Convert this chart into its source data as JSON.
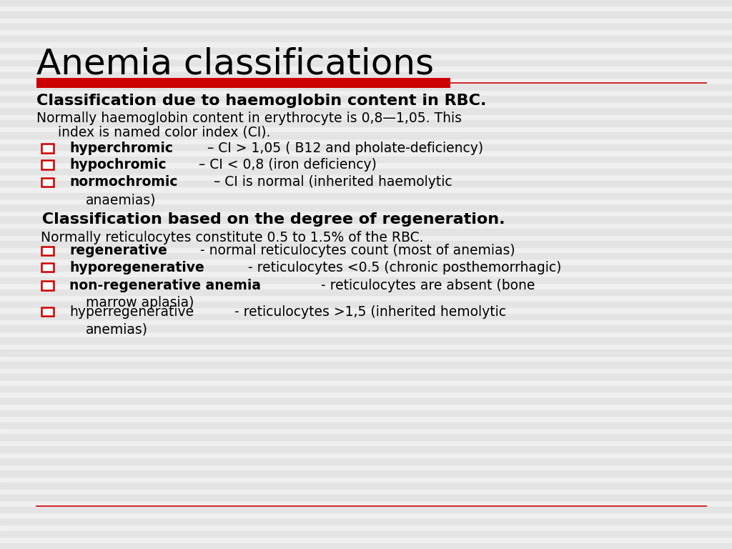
{
  "title": "Anemia classifications",
  "title_fontsize": 36,
  "title_color": "#000000",
  "background_color": "#f0f0f0",
  "stripe_color": "#e4e4e4",
  "red_bar_color": "#cc0000",
  "red_line_color": "#cc0000",
  "section1_heading": "Classification due to haemoglobin content in RBC.",
  "section1_intro_line1": "Normally haemoglobin content in erythrocyte is 0,8—1,05. This",
  "section1_intro_line2": "     index is named color index (CI).",
  "section1_bullets": [
    {
      "bold": "hyperchromic",
      "rest": " – CI > 1,05 ( B12 and pholate-deficiency)",
      "wrap": null
    },
    {
      "bold": "hypochromic",
      "rest": " – CI < 0,8 (iron deficiency)",
      "wrap": null
    },
    {
      "bold": "normochromic",
      "rest": " – CI is normal (inherited haemolytic",
      "wrap": "anaemias)"
    }
  ],
  "section2_heading": " Classification based on the degree of regeneration.",
  "section2_intro": " Normally reticulocytes constitute 0.5 to 1.5% of the RBC.",
  "section2_bullets": [
    {
      "bold": "regenerative",
      "rest": " - normal reticulocytes count (most of anemias)",
      "wrap": null,
      "bold_weight": "bold"
    },
    {
      "bold": "hyporegenerative",
      "rest": " - reticulocytes <0.5 (chronic posthemorrhagic)",
      "wrap": null,
      "bold_weight": "bold"
    },
    {
      "bold": "non-regenerative anemia",
      "rest": " - reticulocytes are absent (bone",
      "wrap": "marrow aplasia)",
      "bold_weight": "bold"
    },
    {
      "bold": "hyperregenerative",
      "rest": " - reticulocytes >1,5 (inherited hemolytic",
      "wrap": "anemias)",
      "bold_weight": "normal"
    }
  ],
  "heading_fontsize": 16,
  "body_fontsize": 13.5,
  "bullet_fontsize": 13.5,
  "checkbox_size": 0.016
}
